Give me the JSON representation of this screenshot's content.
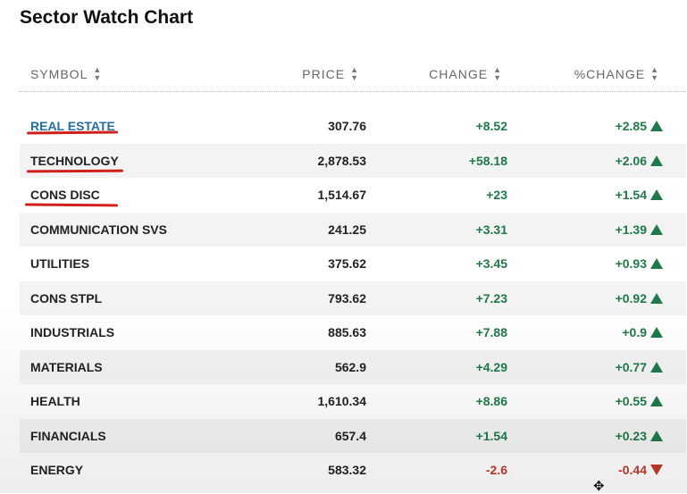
{
  "title": "Sector Watch Chart",
  "columns": {
    "symbol": "SYMBOL",
    "price": "PRICE",
    "change": "CHANGE",
    "pct_change": "%CHANGE",
    "sort_glyph": "▲▼"
  },
  "rows": [
    {
      "symbol": "REAL ESTATE",
      "price": "307.76",
      "change": "+8.52",
      "pct": "+2.85",
      "direction": "up"
    },
    {
      "symbol": "TECHNOLOGY",
      "price": "2,878.53",
      "change": "+58.18",
      "pct": "+2.06",
      "direction": "up"
    },
    {
      "symbol": "CONS DISC",
      "price": "1,514.67",
      "change": "+23",
      "pct": "+1.54",
      "direction": "up"
    },
    {
      "symbol": "COMMUNICATION SVS",
      "price": "241.25",
      "change": "+3.31",
      "pct": "+1.39",
      "direction": "up"
    },
    {
      "symbol": "UTILITIES",
      "price": "375.62",
      "change": "+3.45",
      "pct": "+0.93",
      "direction": "up"
    },
    {
      "symbol": "CONS STPL",
      "price": "793.62",
      "change": "+7.23",
      "pct": "+0.92",
      "direction": "up"
    },
    {
      "symbol": "INDUSTRIALS",
      "price": "885.63",
      "change": "+7.88",
      "pct": "+0.9",
      "direction": "up"
    },
    {
      "symbol": "MATERIALS",
      "price": "562.9",
      "change": "+4.29",
      "pct": "+0.77",
      "direction": "up"
    },
    {
      "symbol": "HEALTH",
      "price": "1,610.34",
      "change": "+8.86",
      "pct": "+0.55",
      "direction": "up"
    },
    {
      "symbol": "FINANCIALS",
      "price": "657.4",
      "change": "+1.54",
      "pct": "+0.23",
      "direction": "up"
    },
    {
      "symbol": "ENERGY",
      "price": "583.32",
      "change": "-2.6",
      "pct": "-0.44",
      "direction": "down"
    }
  ],
  "colors": {
    "up": "#1e7a4a",
    "down": "#c0392b",
    "link": "#1f6ea8",
    "annotation": "#d0201c"
  },
  "icons": {
    "up": "triangle-up-icon",
    "down": "triangle-down-icon",
    "cursor": "move-cursor-icon"
  }
}
